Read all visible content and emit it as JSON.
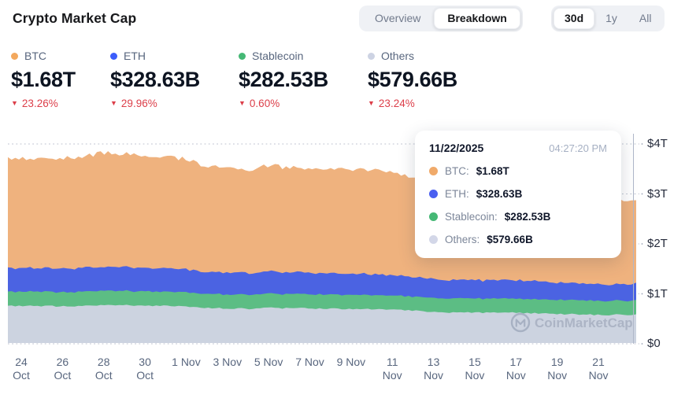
{
  "header": {
    "title": "Crypto Market Cap",
    "view_tabs": [
      {
        "label": "Overview",
        "active": false
      },
      {
        "label": "Breakdown",
        "active": true
      }
    ],
    "range_tabs": [
      {
        "label": "30d",
        "active": true
      },
      {
        "label": "1y",
        "active": false
      },
      {
        "label": "All",
        "active": false
      }
    ]
  },
  "stats": [
    {
      "name": "BTC",
      "dot_color": "#f3a85d",
      "value": "$1.68T",
      "change": "23.26%",
      "direction": "down"
    },
    {
      "name": "ETH",
      "dot_color": "#3b5dfb",
      "value": "$328.63B",
      "change": "29.96%",
      "direction": "down"
    },
    {
      "name": "Stablecoin",
      "dot_color": "#45b875",
      "value": "$282.53B",
      "change": "0.60%",
      "direction": "down"
    },
    {
      "name": "Others",
      "dot_color": "#cdd3e3",
      "value": "$579.66B",
      "change": "23.24%",
      "direction": "down"
    }
  ],
  "tooltip": {
    "date": "11/22/2025",
    "time": "04:27:20 PM",
    "rows": [
      {
        "label": "BTC:",
        "value": "$1.68T",
        "dot_color": "#f0aa6a"
      },
      {
        "label": "ETH:",
        "value": "$328.63B",
        "dot_color": "#4a5ff0"
      },
      {
        "label": "Stablecoin:",
        "value": "$282.53B",
        "dot_color": "#45b875"
      },
      {
        "label": "Others:",
        "value": "$579.66B",
        "dot_color": "#d3d7e8"
      }
    ]
  },
  "watermark": "CoinMarketCap",
  "chart_data": {
    "type": "area",
    "stacked": true,
    "title": "Crypto Market Cap — Breakdown, 30d",
    "unit": "trillions USD",
    "ylim": [
      0,
      4.3
    ],
    "grid": "dotted-horizontal",
    "legend_position": "top-left stats row",
    "x_dates": [
      "10/24",
      "10/25",
      "10/26",
      "10/27",
      "10/28",
      "10/29",
      "10/30",
      "10/31",
      "11/01",
      "11/02",
      "11/03",
      "11/04",
      "11/05",
      "11/06",
      "11/07",
      "11/08",
      "11/09",
      "11/10",
      "11/11",
      "11/12",
      "11/13",
      "11/14",
      "11/15",
      "11/16",
      "11/17",
      "11/18",
      "11/19",
      "11/20",
      "11/21",
      "11/22"
    ],
    "series": [
      {
        "name": "Others",
        "fill_color": "#ccd3e0",
        "values": [
          0.76,
          0.76,
          0.75,
          0.76,
          0.77,
          0.77,
          0.76,
          0.76,
          0.74,
          0.72,
          0.71,
          0.7,
          0.72,
          0.71,
          0.71,
          0.7,
          0.7,
          0.69,
          0.68,
          0.66,
          0.64,
          0.62,
          0.63,
          0.62,
          0.62,
          0.61,
          0.6,
          0.59,
          0.58,
          0.58
        ]
      },
      {
        "name": "Stablecoin",
        "fill_color": "#5cbd84",
        "values": [
          0.284,
          0.285,
          0.284,
          0.286,
          0.287,
          0.286,
          0.285,
          0.285,
          0.284,
          0.283,
          0.283,
          0.282,
          0.284,
          0.283,
          0.283,
          0.282,
          0.283,
          0.282,
          0.282,
          0.281,
          0.28,
          0.28,
          0.281,
          0.28,
          0.281,
          0.28,
          0.281,
          0.282,
          0.283,
          0.283
        ]
      },
      {
        "name": "ETH",
        "fill_color": "#4b63e2",
        "values": [
          0.47,
          0.47,
          0.47,
          0.48,
          0.48,
          0.48,
          0.47,
          0.47,
          0.46,
          0.44,
          0.44,
          0.43,
          0.44,
          0.43,
          0.43,
          0.43,
          0.42,
          0.42,
          0.41,
          0.39,
          0.38,
          0.37,
          0.37,
          0.36,
          0.37,
          0.36,
          0.35,
          0.34,
          0.33,
          0.33
        ]
      },
      {
        "name": "BTC",
        "fill_color": "#efb27e",
        "values": [
          2.19,
          2.21,
          2.2,
          2.24,
          2.29,
          2.27,
          2.26,
          2.25,
          2.2,
          2.14,
          2.11,
          2.07,
          2.12,
          2.11,
          2.1,
          2.09,
          2.09,
          2.08,
          2.05,
          1.98,
          1.91,
          1.86,
          1.89,
          1.86,
          1.89,
          1.84,
          1.82,
          1.77,
          1.71,
          1.68
        ]
      }
    ],
    "yticks": [
      {
        "label": "$0",
        "v": 0
      },
      {
        "label": "$1T",
        "v": 1
      },
      {
        "label": "$2T",
        "v": 2
      },
      {
        "label": "$3T",
        "v": 3
      },
      {
        "label": "$4T",
        "v": 4
      }
    ],
    "xticks": [
      {
        "day": "24",
        "month": "Oct",
        "d": 0,
        "stacked": true
      },
      {
        "day": "26",
        "month": "Oct",
        "d": 2,
        "stacked": true
      },
      {
        "day": "28",
        "month": "Oct",
        "d": 4,
        "stacked": true
      },
      {
        "day": "30",
        "month": "Oct",
        "d": 6,
        "stacked": true
      },
      {
        "day": "1",
        "month": "Nov",
        "d": 8,
        "stacked": false
      },
      {
        "day": "3",
        "month": "Nov",
        "d": 10,
        "stacked": false
      },
      {
        "day": "5",
        "month": "Nov",
        "d": 12,
        "stacked": false
      },
      {
        "day": "7",
        "month": "Nov",
        "d": 14,
        "stacked": false
      },
      {
        "day": "9",
        "month": "Nov",
        "d": 16,
        "stacked": false
      },
      {
        "day": "11",
        "month": "Nov",
        "d": 18,
        "stacked": true
      },
      {
        "day": "13",
        "month": "Nov",
        "d": 20,
        "stacked": true
      },
      {
        "day": "15",
        "month": "Nov",
        "d": 22,
        "stacked": true
      },
      {
        "day": "17",
        "month": "Nov",
        "d": 24,
        "stacked": true
      },
      {
        "day": "19",
        "month": "Nov",
        "d": 26,
        "stacked": true
      },
      {
        "day": "21",
        "month": "Nov",
        "d": 28,
        "stacked": true
      }
    ],
    "crosshair_day_offset": 29.7
  }
}
